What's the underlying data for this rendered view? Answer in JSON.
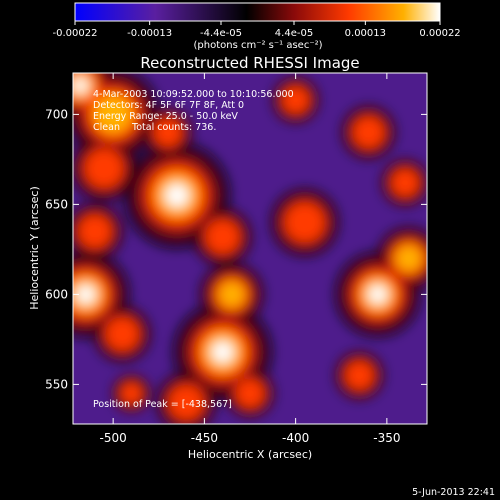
{
  "chart_data": {
    "type": "heatmap",
    "title": "Reconstructed RHESSI Image",
    "xlabel": "Heliocentric X (arcsec)",
    "ylabel": "Heliocentric Y (arcsec)",
    "xlim": [
      -522,
      -328
    ],
    "ylim": [
      528,
      723
    ],
    "x_ticks": [
      -500,
      -450,
      -400,
      -350
    ],
    "y_ticks": [
      550,
      600,
      650,
      700
    ],
    "x_tick_labels": [
      "-500",
      "-450",
      "-400",
      "-350"
    ],
    "y_tick_labels": [
      "550",
      "600",
      "650",
      "700"
    ],
    "colorbar": {
      "ticks": [
        -0.00022,
        -0.00013,
        -4.4e-05,
        4.4e-05,
        0.00013,
        0.00022
      ],
      "tick_labels": [
        "-0.00022",
        "-0.00013",
        "-4.4e-05",
        "4.4e-05",
        "0.00013",
        "0.00022"
      ],
      "range": [
        -0.00022,
        0.00022
      ],
      "unit_label": "(photons cm⁻² s⁻¹ asec⁻²)",
      "colors": [
        "#0000ff",
        "#5a1fa0",
        "#000000",
        "#8a0a0a",
        "#ff3a00",
        "#ffb000",
        "#ffffff"
      ]
    },
    "annotations": {
      "time_range": "4-Mar-2003 10:09:52.000 to 10:10:56.000",
      "detectors": "Detectors: 4F 5F 6F 7F 8F, Att 0",
      "energy_range": "Energy Range: 25.0 - 50.0 keV",
      "clean_counts": "Clean    Total counts: 736.",
      "peak": "Position of Peak = [-438,567]"
    },
    "peak": [
      -438,
      567
    ],
    "footer_date": "5-Jun-2013 22:41",
    "emission_blobs": [
      {
        "x": -518,
        "y": 716,
        "r": 14,
        "v": 1.0
      },
      {
        "x": -500,
        "y": 700,
        "r": 20,
        "v": 0.85
      },
      {
        "x": -505,
        "y": 670,
        "r": 16,
        "v": 0.6
      },
      {
        "x": -465,
        "y": 655,
        "r": 22,
        "v": 0.95
      },
      {
        "x": -470,
        "y": 690,
        "r": 12,
        "v": 0.55
      },
      {
        "x": -440,
        "y": 632,
        "r": 14,
        "v": 0.6
      },
      {
        "x": -510,
        "y": 635,
        "r": 14,
        "v": 0.55
      },
      {
        "x": -515,
        "y": 600,
        "r": 18,
        "v": 0.95
      },
      {
        "x": -495,
        "y": 578,
        "r": 14,
        "v": 0.55
      },
      {
        "x": -440,
        "y": 568,
        "r": 20,
        "v": 1.0
      },
      {
        "x": -435,
        "y": 600,
        "r": 14,
        "v": 0.8
      },
      {
        "x": -460,
        "y": 540,
        "r": 14,
        "v": 0.65
      },
      {
        "x": -425,
        "y": 545,
        "r": 12,
        "v": 0.55
      },
      {
        "x": -355,
        "y": 600,
        "r": 18,
        "v": 0.9
      },
      {
        "x": -338,
        "y": 620,
        "r": 14,
        "v": 0.8
      },
      {
        "x": -365,
        "y": 555,
        "r": 12,
        "v": 0.55
      },
      {
        "x": -395,
        "y": 640,
        "r": 16,
        "v": 0.65
      },
      {
        "x": -400,
        "y": 708,
        "r": 12,
        "v": 0.45
      },
      {
        "x": -360,
        "y": 690,
        "r": 14,
        "v": 0.45
      },
      {
        "x": -340,
        "y": 662,
        "r": 12,
        "v": 0.5
      },
      {
        "x": -490,
        "y": 545,
        "r": 10,
        "v": 0.4
      }
    ]
  }
}
